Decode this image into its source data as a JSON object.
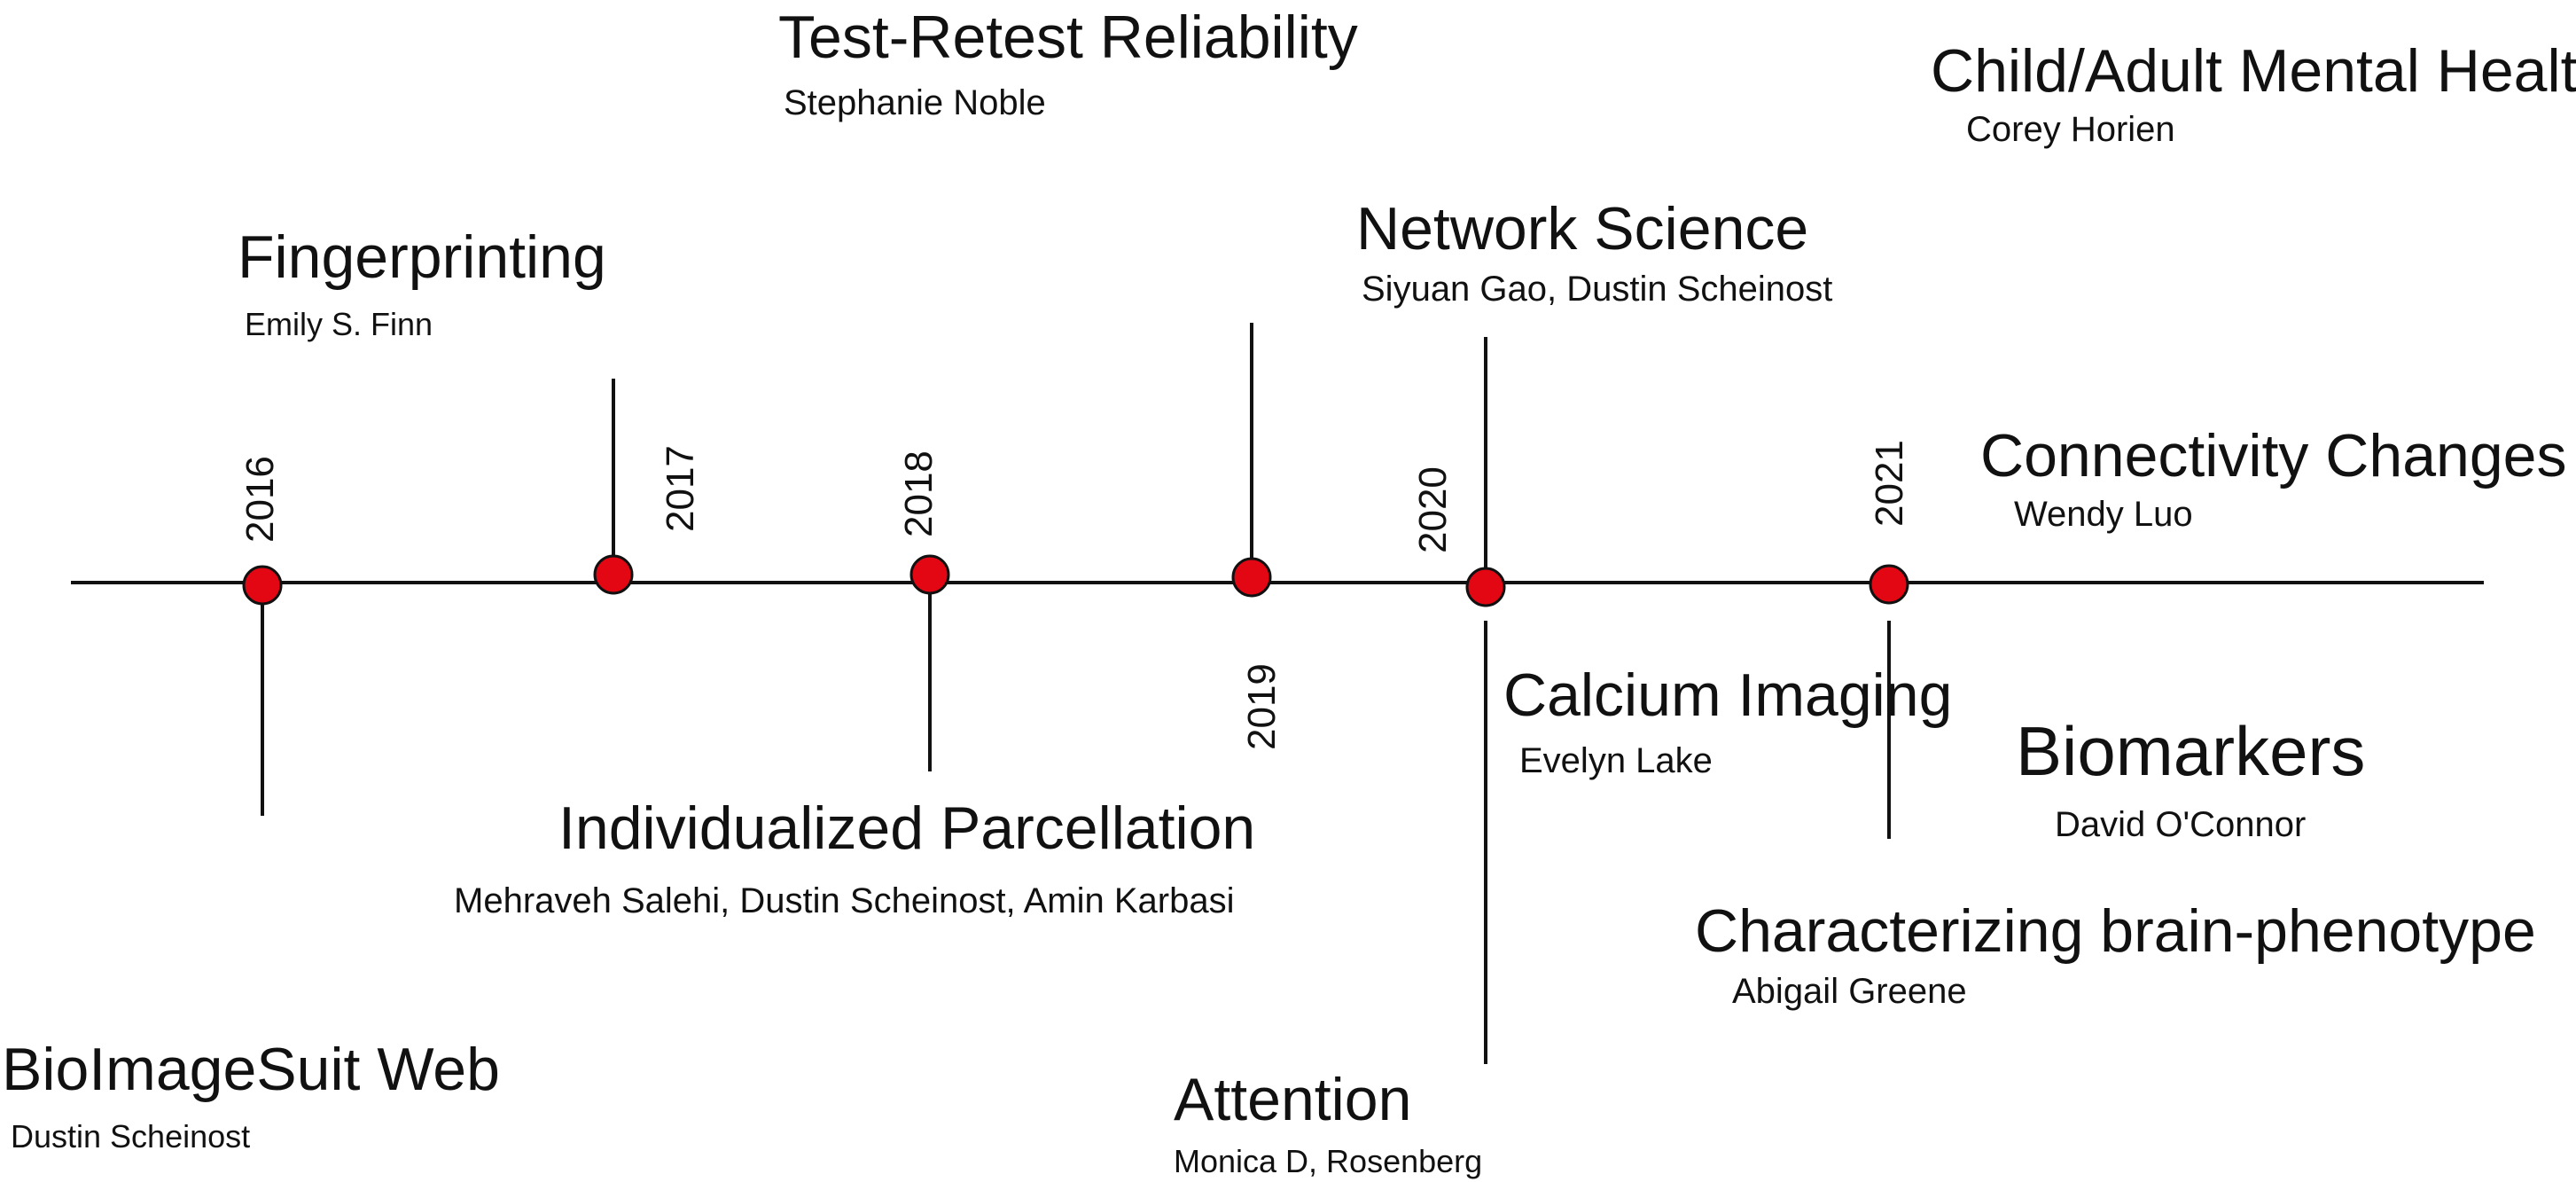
{
  "colors": {
    "line": "#111111",
    "marker": "#e30613",
    "text": "#111111"
  },
  "years": [
    "2016",
    "2017",
    "2018",
    "2019",
    "2020",
    "2021"
  ],
  "events": [
    {
      "title": "Test-Retest Reliability",
      "author": "Stephanie Noble"
    },
    {
      "title": "Child/Adult Mental Health",
      "author": "Corey Horien"
    },
    {
      "title": "Fingerprinting",
      "author": "Emily S. Finn"
    },
    {
      "title": "Network Science",
      "author": "Siyuan Gao, Dustin Scheinost"
    },
    {
      "title": "Connectivity Changes",
      "author": "Wendy Luo"
    },
    {
      "title": "Calcium Imaging",
      "author": "Evelyn Lake"
    },
    {
      "title": "Biomarkers",
      "author": "David O'Connor"
    },
    {
      "title": "Individualized Parcellation",
      "author": "Mehraveh Salehi, Dustin Scheinost, Amin Karbasi"
    },
    {
      "title": "Characterizing brain-phenotype",
      "author": "Abigail Greene"
    },
    {
      "title": "BioImageSuit Web",
      "author": "Dustin Scheinost"
    },
    {
      "title": "Attention",
      "author": "Monica D, Rosenberg"
    }
  ]
}
